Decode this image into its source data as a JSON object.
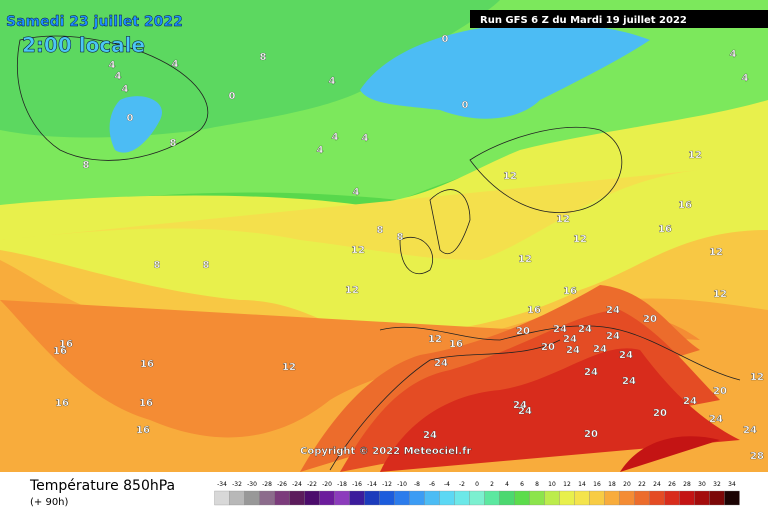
{
  "header": {
    "date": "Samedi 23 juillet 2022",
    "time": "2:00 locale",
    "run": "Run GFS 6 Z du Mardi 19 juillet 2022"
  },
  "map": {
    "copyright": "Copyright © 2022 Meteociel.fr",
    "contour_labels": [
      4,
      4,
      4,
      4,
      4,
      4,
      4,
      4,
      4,
      4,
      4,
      0,
      0,
      0,
      0,
      8,
      8,
      8,
      8,
      8,
      8,
      8,
      12,
      12,
      12,
      12,
      12,
      12,
      12,
      12,
      12,
      12,
      12,
      12,
      16,
      16,
      16,
      16,
      16,
      16,
      16,
      16,
      16,
      16,
      16,
      20,
      20,
      20,
      20,
      20,
      20,
      24,
      24,
      24,
      24,
      24,
      24,
      24,
      24,
      24,
      24,
      24,
      24,
      24,
      24,
      24,
      24,
      24,
      28
    ]
  },
  "legend": {
    "title": "Température 850hPa",
    "lead": "(+ 90h)",
    "ticks": [
      -34,
      -32,
      -30,
      -28,
      -26,
      -24,
      -22,
      -20,
      -18,
      -16,
      -14,
      -12,
      -10,
      -8,
      -6,
      -4,
      -2,
      0,
      2,
      4,
      6,
      8,
      10,
      12,
      14,
      16,
      18,
      20,
      22,
      24,
      26,
      28,
      30,
      32,
      34
    ],
    "colors": [
      "#d8d8d8",
      "#b8b8b8",
      "#989898",
      "#8c6c8c",
      "#7c3c7c",
      "#5c1c5c",
      "#4c0c6c",
      "#6c1c9c",
      "#8c3cbc",
      "#3c1c9c",
      "#1c3cbc",
      "#1c5cdc",
      "#2c7cec",
      "#3c9cf4",
      "#4cbcf4",
      "#5cd8f4",
      "#6ce8e8",
      "#7cf0d0",
      "#5ce8a0",
      "#4cd870",
      "#5cdc4c",
      "#8ce44c",
      "#bcec4c",
      "#e8f04c",
      "#f4e44c",
      "#f8cc44",
      "#f8ac3c",
      "#f48c34",
      "#ec6c2c",
      "#e44c24",
      "#d82c1c",
      "#c41414",
      "#a40c0c",
      "#7c0808",
      "#1c0404"
    ]
  }
}
